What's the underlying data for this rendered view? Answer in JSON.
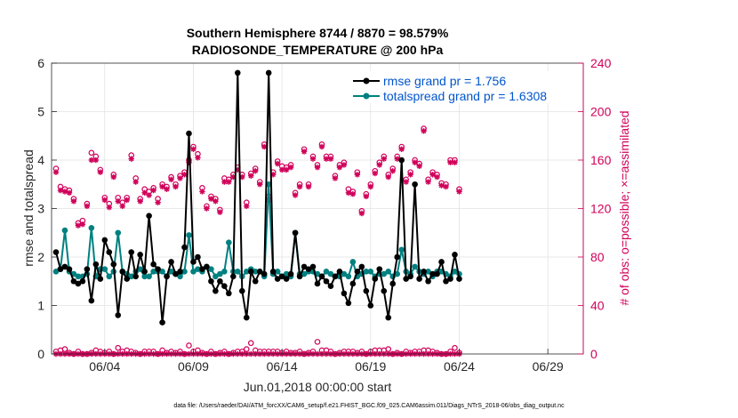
{
  "chart_data": {
    "type": "line",
    "title_line1": "Southern Hemisphere 8744 / 8870 = 98.579%",
    "title_line2": "RADIOSONDE_TEMPERATURE @ 200 hPa",
    "ylabel_left": "rmse and totalspread",
    "ylabel_right": "# of obs: o=possible; ×=assimilated",
    "xlabel": "Jun.01,2018 00:00:00 start",
    "footnote": "data file: /Users/raeder/DAI/ATM_forcXX/CAM6_setup/f.e21.FHIST_BGC.f09_025.CAM6assim.011/Diags_NTrS_2018-06/obs_diag_output.nc",
    "ylim_left": [
      0,
      6
    ],
    "ylim_right": [
      0,
      240
    ],
    "xlim": [
      1,
      31
    ],
    "left_ticks": [
      "0",
      "1",
      "2",
      "3",
      "4",
      "5",
      "6"
    ],
    "right_ticks": [
      "0",
      "40",
      "80",
      "120",
      "160",
      "200",
      "240"
    ],
    "x_ticks": [
      {
        "day": 4,
        "label": "06/04"
      },
      {
        "day": 9,
        "label": "06/09"
      },
      {
        "day": 14,
        "label": "06/14"
      },
      {
        "day": 19,
        "label": "06/19"
      },
      {
        "day": 24,
        "label": "06/24"
      },
      {
        "day": 29,
        "label": "06/29"
      }
    ],
    "legend": [
      {
        "label": "rmse grand pr = 1.756",
        "color": "#000000"
      },
      {
        "label": "totalspread grand pr = 1.6308",
        "color": "#008080"
      }
    ],
    "colors": {
      "rmse": "#000000",
      "spread": "#008080",
      "obs": "#d1005a",
      "axis": "#262626"
    },
    "x_start": 1.25,
    "x_step": 0.25,
    "series": [
      {
        "name": "rmse",
        "values": [
          2.1,
          1.75,
          1.8,
          1.75,
          1.5,
          1.45,
          1.5,
          1.75,
          1.1,
          1.85,
          1.55,
          2.35,
          2.1,
          1.85,
          0.8,
          1.7,
          1.55,
          2.1,
          1.6,
          2.05,
          1.7,
          2.85,
          1.85,
          1.75,
          0.65,
          1.6,
          1.9,
          1.65,
          1.7,
          2.2,
          4.55,
          1.9,
          2.0,
          1.75,
          1.8,
          1.5,
          1.3,
          1.5,
          1.4,
          1.25,
          1.6,
          5.8,
          1.3,
          0.75,
          1.7,
          1.5,
          1.7,
          1.65,
          5.8,
          1.7,
          1.55,
          1.6,
          1.55,
          1.65,
          2.5,
          1.6,
          1.8,
          1.75,
          1.8,
          1.45,
          1.6,
          1.5,
          1.4,
          1.6,
          1.7,
          1.25,
          1.05,
          1.45,
          1.7,
          1.8,
          1.3,
          1.0,
          1.55,
          1.75,
          1.3,
          0.75,
          1.45,
          2.0,
          4.0,
          1.55,
          1.6,
          3.5,
          1.55,
          1.7,
          1.5,
          1.65,
          1.65,
          1.9,
          1.5,
          1.55,
          2.05,
          1.55
        ]
      },
      {
        "name": "totalspread",
        "values": [
          1.7,
          1.75,
          2.55,
          1.7,
          1.65,
          1.6,
          1.6,
          1.65,
          2.6,
          1.6,
          1.75,
          1.75,
          1.6,
          1.7,
          2.5,
          1.7,
          1.65,
          1.6,
          1.7,
          1.75,
          1.6,
          1.6,
          1.7,
          1.7,
          1.7,
          1.6,
          1.7,
          1.65,
          1.6,
          1.7,
          2.45,
          1.7,
          1.75,
          1.7,
          1.8,
          1.75,
          1.6,
          1.65,
          1.7,
          2.3,
          1.7,
          1.7,
          1.6,
          1.7,
          1.75,
          1.7,
          1.7,
          1.6,
          3.5,
          1.65,
          1.7,
          1.6,
          1.65,
          1.6,
          2.5,
          1.65,
          1.65,
          1.7,
          1.7,
          1.65,
          1.6,
          1.7,
          1.65,
          1.6,
          1.6,
          1.65,
          1.6,
          1.9,
          1.6,
          1.65,
          1.7,
          1.7,
          1.6,
          1.65,
          1.65,
          1.7,
          1.6,
          1.65,
          2.15,
          1.7,
          1.65,
          1.8,
          1.7,
          1.65,
          1.7,
          1.6,
          1.7,
          1.7,
          1.65,
          1.6,
          1.7,
          1.65
        ]
      },
      {
        "name": "possible",
        "values": [
          153,
          138,
          136,
          135,
          128,
          108,
          110,
          124,
          166,
          163,
          152,
          129,
          124,
          148,
          129,
          125,
          129,
          164,
          145,
          128,
          136,
          134,
          137,
          128,
          140,
          138,
          146,
          140,
          147,
          150,
          160,
          171,
          165,
          137,
          122,
          130,
          128,
          119,
          145,
          144,
          148,
          154,
          148,
          125,
          149,
          153,
          142,
          173,
          130,
          150,
          159,
          155,
          154,
          156,
          133,
          140,
          169,
          140,
          163,
          156,
          173,
          163,
          163,
          147,
          156,
          158,
          136,
          134,
          150,
          118,
          132,
          140,
          151,
          158,
          163,
          148,
          153,
          163,
          171,
          144,
          150,
          160,
          157,
          186,
          144,
          150,
          148,
          141,
          140,
          160,
          160,
          136
        ]
      },
      {
        "name": "assimilated",
        "values": [
          150,
          135,
          134,
          133,
          126,
          106,
          107,
          122,
          160,
          160,
          150,
          127,
          121,
          146,
          126,
          122,
          127,
          161,
          142,
          126,
          133,
          131,
          135,
          125,
          138,
          136,
          144,
          138,
          145,
          148,
          158,
          169,
          162,
          134,
          120,
          128,
          126,
          117,
          142,
          142,
          146,
          152,
          146,
          122,
          147,
          151,
          140,
          171,
          127,
          148,
          157,
          152,
          152,
          154,
          131,
          138,
          167,
          138,
          161,
          154,
          171,
          161,
          161,
          145,
          154,
          156,
          133,
          132,
          148,
          116,
          130,
          138,
          149,
          156,
          161,
          146,
          151,
          161,
          169,
          142,
          148,
          158,
          155,
          184,
          142,
          148,
          146,
          139,
          138,
          158,
          158,
          134
        ]
      },
      {
        "name": "rejected_possible",
        "values": [
          2,
          3,
          4,
          1,
          0,
          2,
          0,
          0,
          1,
          3,
          2,
          1,
          2,
          0,
          5,
          2,
          3,
          2,
          1,
          0,
          2,
          2,
          2,
          0,
          3,
          1,
          2,
          1,
          2,
          0,
          7,
          2,
          3,
          1,
          0,
          2,
          0,
          1,
          2,
          0,
          1,
          2,
          2,
          4,
          9,
          3,
          2,
          2,
          2,
          2,
          2,
          1,
          2,
          1,
          1,
          2,
          0,
          1,
          2,
          10,
          3,
          3,
          2,
          0,
          1,
          2,
          2,
          2,
          1,
          2,
          0,
          2,
          3,
          3,
          3,
          4,
          0,
          1,
          0,
          2,
          1,
          2,
          2,
          3,
          3,
          2,
          1,
          0,
          0,
          2,
          5,
          1
        ]
      }
    ]
  }
}
